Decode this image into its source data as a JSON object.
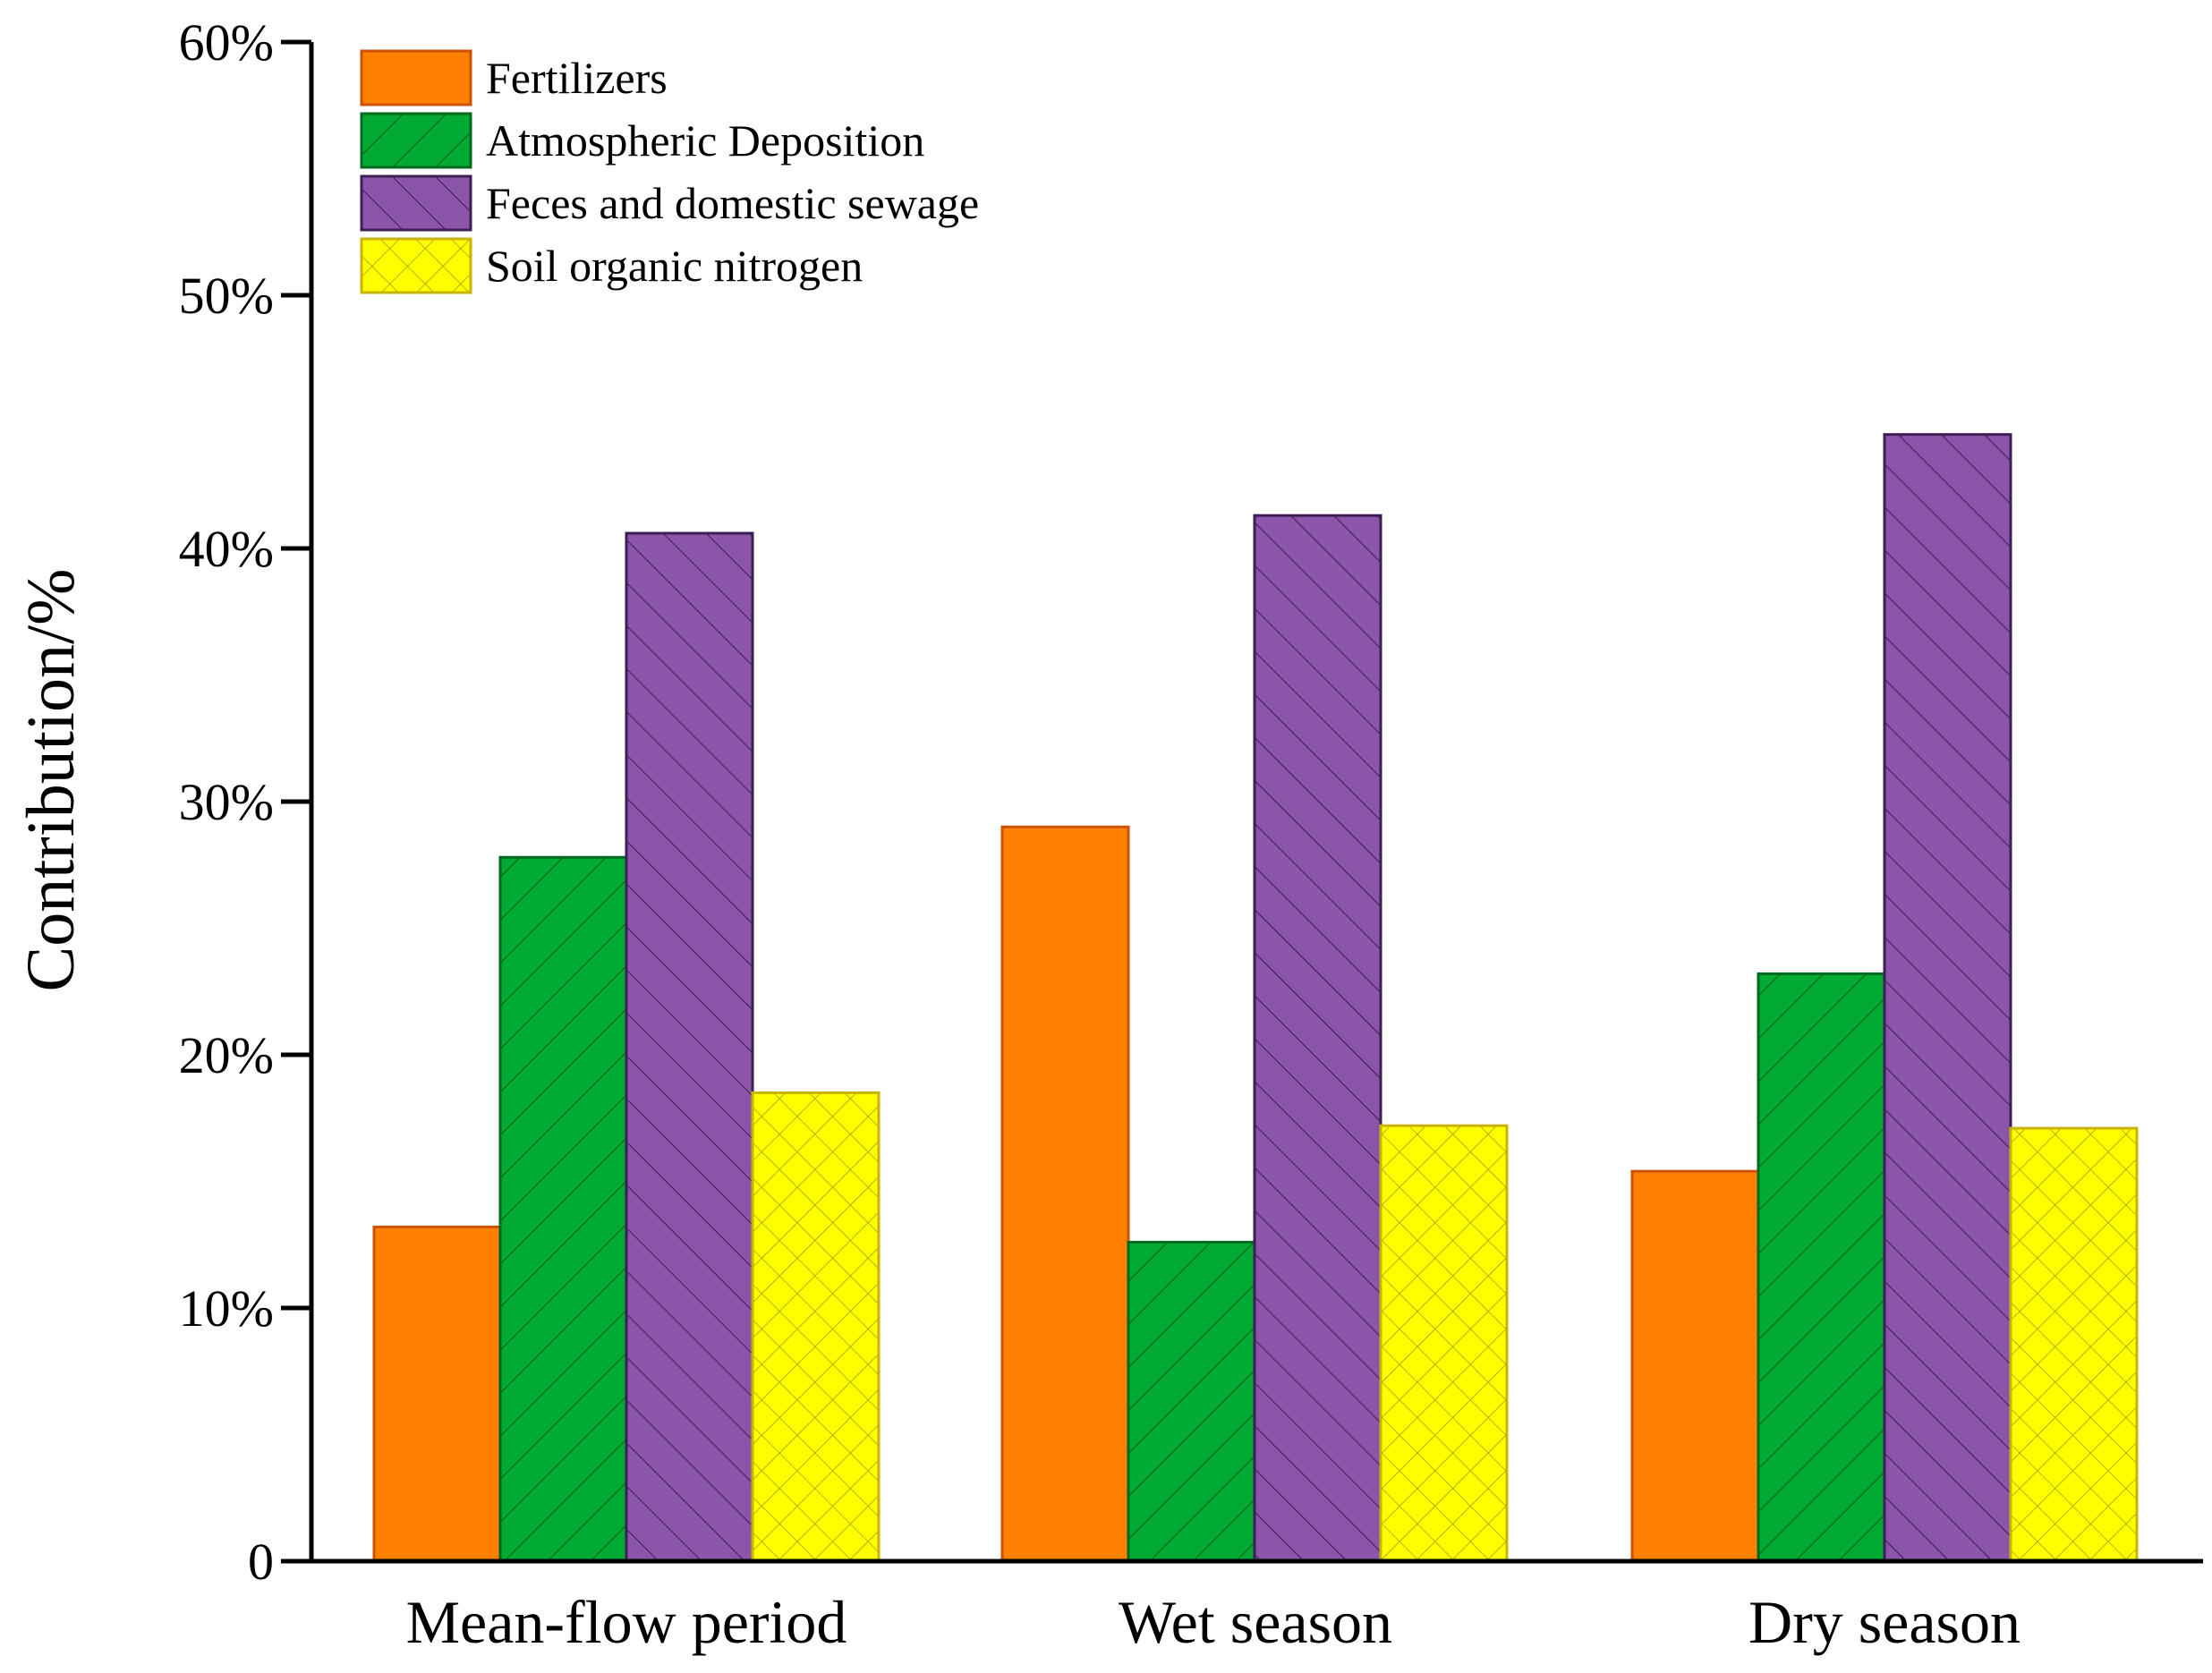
{
  "chart_data": {
    "type": "bar",
    "title": "",
    "xlabel": "",
    "ylabel": "Contribution/%",
    "ylim": [
      0,
      60
    ],
    "yticks": [
      0,
      10,
      20,
      30,
      40,
      50,
      60
    ],
    "ytick_labels": [
      "0",
      "10%",
      "20%",
      "30%",
      "40%",
      "50%",
      "60%"
    ],
    "categories": [
      "Mean-flow period",
      "Wet season",
      "Dry season"
    ],
    "legend_position": "top-left",
    "series": [
      {
        "name": "Fertilizers",
        "values": [
          13.2,
          29.0,
          15.4
        ],
        "fill": "#ff8000",
        "stroke": "#cc5200",
        "pattern": "none"
      },
      {
        "name": "Atmospheric Deposition",
        "values": [
          27.8,
          12.6,
          23.2
        ],
        "fill": "#00aa33",
        "stroke": "#006a1f",
        "pattern": "forward-diagonal"
      },
      {
        "name": "Feces and domestic sewage",
        "values": [
          40.6,
          41.3,
          44.5
        ],
        "fill": "#8c55aa",
        "stroke": "#3d1e55",
        "pattern": "backward-diagonal"
      },
      {
        "name": "Soil organic nitrogen",
        "values": [
          18.5,
          17.2,
          17.1
        ],
        "fill": "#ffff00",
        "stroke": "#c8b400",
        "pattern": "crosshatch"
      }
    ]
  }
}
